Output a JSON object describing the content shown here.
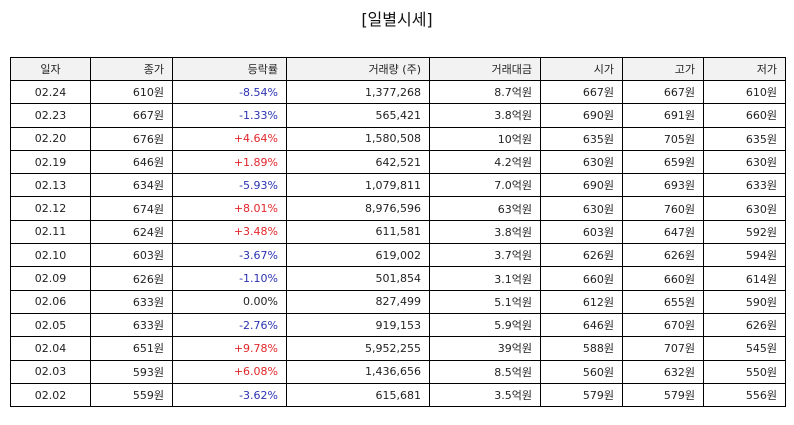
{
  "title": "[일별시세]",
  "colors": {
    "up": "#e0262a",
    "down": "#2b32b2",
    "flat": "#222222"
  },
  "table": {
    "headers": [
      "일자",
      "종가",
      "등락률",
      "거래량 (주)",
      "거래대금",
      "시가",
      "고가",
      "저가"
    ],
    "rows": [
      [
        "02.24",
        "610원",
        "-8.54%",
        "1,377,268",
        "8.7억원",
        "667원",
        "667원",
        "610원"
      ],
      [
        "02.23",
        "667원",
        "-1.33%",
        "565,421",
        "3.8억원",
        "690원",
        "691원",
        "660원"
      ],
      [
        "02.20",
        "676원",
        "+4.64%",
        "1,580,508",
        "10억원",
        "635원",
        "705원",
        "635원"
      ],
      [
        "02.19",
        "646원",
        "+1.89%",
        "642,521",
        "4.2억원",
        "630원",
        "659원",
        "630원"
      ],
      [
        "02.13",
        "634원",
        "-5.93%",
        "1,079,811",
        "7.0억원",
        "690원",
        "693원",
        "633원"
      ],
      [
        "02.12",
        "674원",
        "+8.01%",
        "8,976,596",
        "63억원",
        "630원",
        "760원",
        "630원"
      ],
      [
        "02.11",
        "624원",
        "+3.48%",
        "611,581",
        "3.8억원",
        "603원",
        "647원",
        "592원"
      ],
      [
        "02.10",
        "603원",
        "-3.67%",
        "619,002",
        "3.7억원",
        "626원",
        "626원",
        "594원"
      ],
      [
        "02.09",
        "626원",
        "-1.10%",
        "501,854",
        "3.1억원",
        "660원",
        "660원",
        "614원"
      ],
      [
        "02.06",
        "633원",
        "0.00%",
        "827,499",
        "5.1억원",
        "612원",
        "655원",
        "590원"
      ],
      [
        "02.05",
        "633원",
        "-2.76%",
        "919,153",
        "5.9억원",
        "646원",
        "670원",
        "626원"
      ],
      [
        "02.04",
        "651원",
        "+9.78%",
        "5,952,255",
        "39억원",
        "588원",
        "707원",
        "545원"
      ],
      [
        "02.03",
        "593원",
        "+6.08%",
        "1,436,656",
        "8.5억원",
        "560원",
        "632원",
        "550원"
      ],
      [
        "02.02",
        "559원",
        "-3.62%",
        "615,681",
        "3.5억원",
        "579원",
        "579원",
        "556원"
      ]
    ]
  }
}
